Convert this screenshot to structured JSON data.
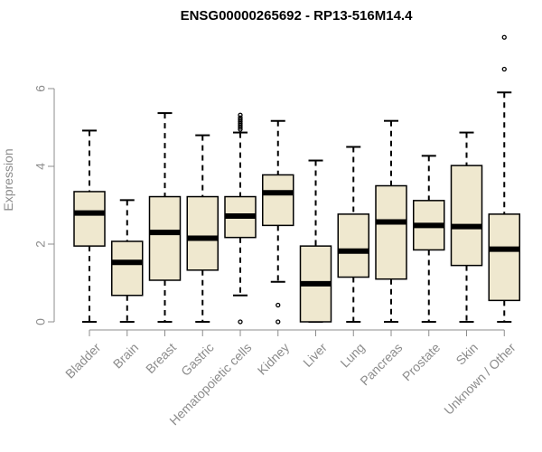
{
  "chart_data": {
    "type": "boxplot",
    "title": "ENSG00000265692 - RP13-516M14.4",
    "xlabel": "",
    "ylabel": "Expression",
    "ylim": [
      0,
      8
    ],
    "yticks": [
      0,
      2,
      4,
      6
    ],
    "grid": false,
    "colors": {
      "box_fill": "#efe8cf",
      "stroke": "#000000",
      "axis": "#8c8c8c"
    },
    "categories": [
      "Bladder",
      "Brain",
      "Breast",
      "Gastric",
      "Hematopoietic cells",
      "Kidney",
      "Liver",
      "Lung",
      "Pancreas",
      "Prostate",
      "Skin",
      "Unknown / Other"
    ],
    "boxes": [
      {
        "whisker_low": 0,
        "q1": 1.95,
        "median": 2.8,
        "q3": 3.35,
        "whisker_high": 4.92,
        "outliers": []
      },
      {
        "whisker_low": 0,
        "q1": 0.68,
        "median": 1.53,
        "q3": 2.07,
        "whisker_high": 3.13,
        "outliers": []
      },
      {
        "whisker_low": 0,
        "q1": 1.07,
        "median": 2.3,
        "q3": 3.22,
        "whisker_high": 5.37,
        "outliers": []
      },
      {
        "whisker_low": 0,
        "q1": 1.33,
        "median": 2.15,
        "q3": 3.22,
        "whisker_high": 4.8,
        "outliers": []
      },
      {
        "whisker_low": 0.68,
        "q1": 2.17,
        "median": 2.72,
        "q3": 3.22,
        "whisker_high": 4.87,
        "outliers": [
          0,
          4.95,
          5.0,
          5.05,
          5.1,
          5.15,
          5.2,
          5.25,
          5.32
        ]
      },
      {
        "whisker_low": 1.03,
        "q1": 2.48,
        "median": 3.32,
        "q3": 3.78,
        "whisker_high": 5.17,
        "outliers": [
          0,
          0.43
        ]
      },
      {
        "whisker_low": 0,
        "q1": 0,
        "median": 0.98,
        "q3": 1.95,
        "whisker_high": 4.15,
        "outliers": []
      },
      {
        "whisker_low": 0,
        "q1": 1.15,
        "median": 1.82,
        "q3": 2.77,
        "whisker_high": 4.5,
        "outliers": []
      },
      {
        "whisker_low": 0,
        "q1": 1.1,
        "median": 2.57,
        "q3": 3.5,
        "whisker_high": 5.17,
        "outliers": []
      },
      {
        "whisker_low": 0,
        "q1": 1.85,
        "median": 2.48,
        "q3": 3.12,
        "whisker_high": 4.27,
        "outliers": []
      },
      {
        "whisker_low": 0,
        "q1": 1.45,
        "median": 2.45,
        "q3": 4.02,
        "whisker_high": 4.87,
        "outliers": []
      },
      {
        "whisker_low": 0,
        "q1": 0.55,
        "median": 1.87,
        "q3": 2.77,
        "whisker_high": 5.9,
        "outliers": [
          6.5,
          7.32
        ]
      }
    ]
  }
}
